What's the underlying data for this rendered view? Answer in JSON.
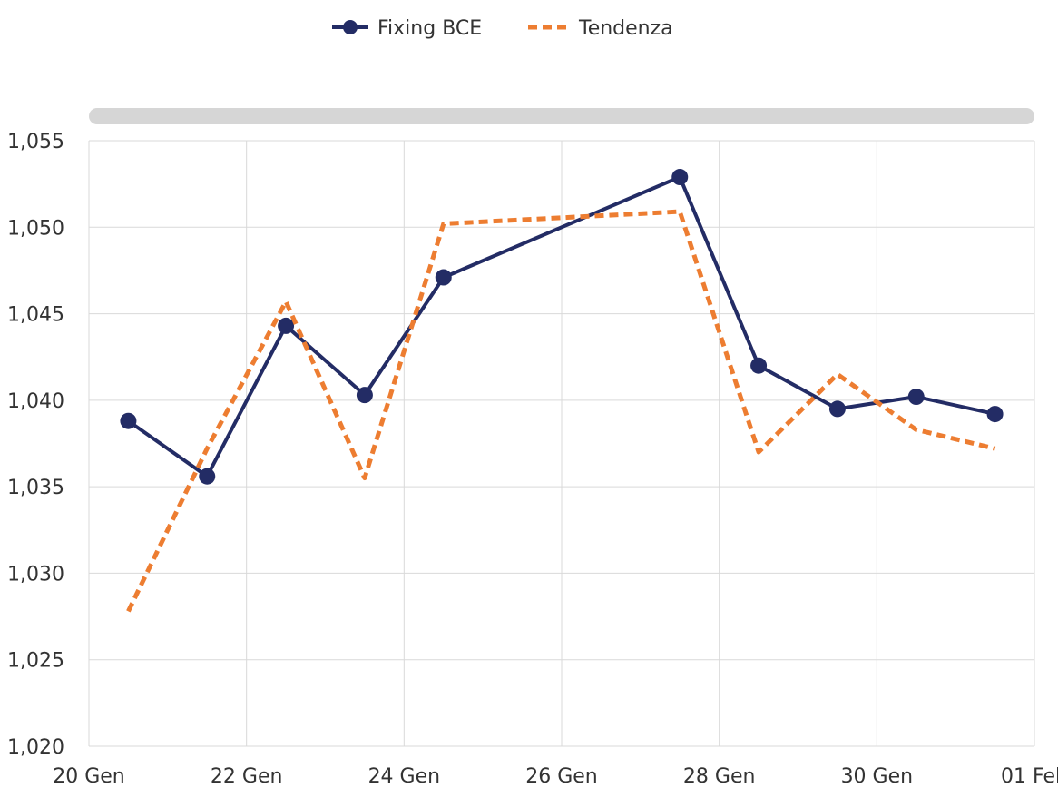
{
  "chart_data": {
    "type": "line",
    "legend": {
      "placement": "top-center"
    },
    "grid": true,
    "xlim": [
      "20 Gen",
      "01 Feb"
    ],
    "ylim": [
      1.02,
      1.055
    ],
    "y_ticks": [
      "1,020",
      "1,025",
      "1,030",
      "1,035",
      "1,040",
      "1,045",
      "1,050",
      "1,055"
    ],
    "x_ticks": [
      "20 Gen",
      "22 Gen",
      "24 Gen",
      "26 Gen",
      "28 Gen",
      "30 Gen",
      "01 Feb"
    ],
    "series": [
      {
        "name": "Fixing BCE",
        "color": "#232c65",
        "style": "solid-with-markers",
        "points": [
          {
            "x": "20 Gen",
            "y": 1.0388
          },
          {
            "x": "21 Gen",
            "y": 1.0356
          },
          {
            "x": "22 Gen",
            "y": 1.0443
          },
          {
            "x": "23 Gen",
            "y": 1.0403
          },
          {
            "x": "24 Gen",
            "y": 1.0471
          },
          {
            "x": "27 Gen",
            "y": 1.0529
          },
          {
            "x": "28 Gen",
            "y": 1.042
          },
          {
            "x": "29 Gen",
            "y": 1.0395
          },
          {
            "x": "30 Gen",
            "y": 1.0402
          },
          {
            "x": "31 Gen",
            "y": 1.0392
          }
        ]
      },
      {
        "name": "Tendenza",
        "color": "#ed7d31",
        "style": "dashed",
        "points": [
          {
            "x": "20 Gen",
            "y": 1.0278
          },
          {
            "x": "21 Gen",
            "y": 1.0372
          },
          {
            "x": "22 Gen",
            "y": 1.0457
          },
          {
            "x": "23 Gen",
            "y": 1.0355
          },
          {
            "x": "24 Gen",
            "y": 1.0502
          },
          {
            "x": "27 Gen",
            "y": 1.0509
          },
          {
            "x": "28 Gen",
            "y": 1.037
          },
          {
            "x": "29 Gen",
            "y": 1.0415
          },
          {
            "x": "30 Gen",
            "y": 1.0383
          },
          {
            "x": "31 Gen",
            "y": 1.0372
          }
        ]
      }
    ]
  }
}
